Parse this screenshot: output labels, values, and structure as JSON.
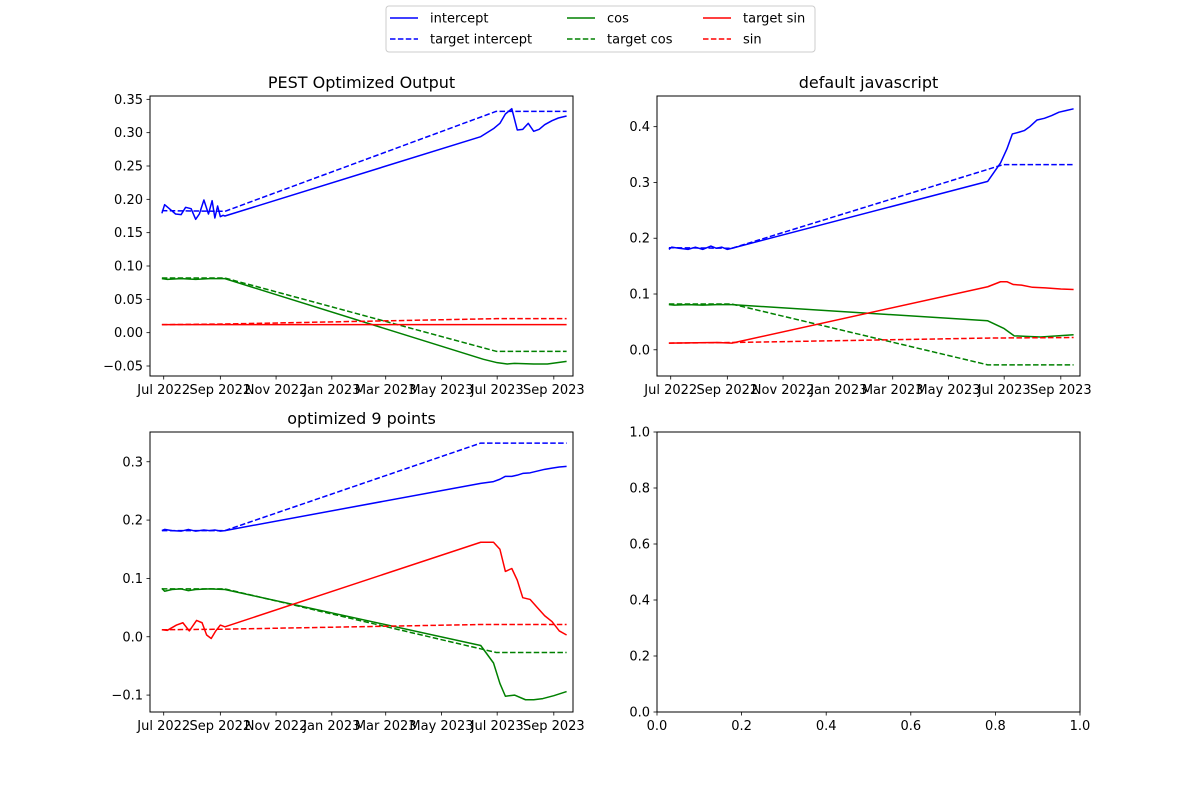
{
  "colors": {
    "blue": "#0000ff",
    "green": "#008000",
    "red": "#ff0000",
    "axis": "#000000"
  },
  "legend": {
    "placement": "top-center",
    "entries": [
      {
        "label": "intercept",
        "color": "#0000ff",
        "style": "solid"
      },
      {
        "label": "target intercept",
        "color": "#0000ff",
        "style": "dashed"
      },
      {
        "label": "cos",
        "color": "#008000",
        "style": "solid"
      },
      {
        "label": "target cos",
        "color": "#008000",
        "style": "dashed"
      },
      {
        "label": "target sin",
        "color": "#ff0000",
        "style": "solid"
      },
      {
        "label": "sin",
        "color": "#ff0000",
        "style": "dashed"
      }
    ]
  },
  "chart_data": [
    {
      "type": "line",
      "title": "PEST Optimized Output",
      "xlabel": "",
      "ylabel": "",
      "x_is_date": true,
      "xlim": [
        "2022-06-16",
        "2023-09-22"
      ],
      "ylim": [
        -0.065,
        0.355
      ],
      "xticks": [
        "2022-07-01",
        "2022-09-01",
        "2022-11-01",
        "2023-01-01",
        "2023-03-01",
        "2023-05-01",
        "2023-07-01",
        "2023-09-01"
      ],
      "xticklabels": [
        "Jul 2022",
        "Sep 2022",
        "Nov 2022",
        "Jan 2023",
        "Mar 2023",
        "May 2023",
        "Jul 2023",
        "Sep 2023"
      ],
      "yticks": [
        -0.05,
        0,
        0.05,
        0.1,
        0.15,
        0.2,
        0.25,
        0.3,
        0.35
      ],
      "yticklabels": [
        "−0.05",
        "0.00",
        "0.05",
        "0.10",
        "0.15",
        "0.20",
        "0.25",
        "0.30",
        "0.35"
      ],
      "series": [
        {
          "name": "intercept",
          "color": "#0000ff",
          "style": "solid",
          "x": [
            "2022-06-29",
            "2022-07-02",
            "2022-07-08",
            "2022-07-14",
            "2022-07-20",
            "2022-07-25",
            "2022-07-31",
            "2022-08-05",
            "2022-08-09",
            "2022-08-14",
            "2022-08-19",
            "2022-08-23",
            "2022-08-26",
            "2022-08-29",
            "2022-09-01",
            "2022-09-04",
            "2022-09-06",
            "2023-06-13",
            "2023-06-27",
            "2023-07-04",
            "2023-07-10",
            "2023-07-17",
            "2023-07-23",
            "2023-07-29",
            "2023-08-04",
            "2023-08-10",
            "2023-08-16",
            "2023-08-22",
            "2023-08-30",
            "2023-09-06",
            "2023-09-15"
          ],
          "y": [
            0.179,
            0.192,
            0.185,
            0.178,
            0.177,
            0.188,
            0.186,
            0.17,
            0.178,
            0.199,
            0.178,
            0.198,
            0.172,
            0.19,
            0.174,
            0.176,
            0.175,
            0.294,
            0.306,
            0.314,
            0.328,
            0.336,
            0.304,
            0.305,
            0.314,
            0.302,
            0.305,
            0.312,
            0.318,
            0.322,
            0.325
          ]
        },
        {
          "name": "target intercept",
          "color": "#0000ff",
          "style": "dashed",
          "x": [
            "2022-06-29",
            "2022-09-06",
            "2023-06-30",
            "2023-09-15"
          ],
          "y": [
            0.183,
            0.182,
            0.332,
            0.332
          ]
        },
        {
          "name": "cos",
          "color": "#008000",
          "style": "solid",
          "x": [
            "2022-06-29",
            "2022-07-05",
            "2022-07-20",
            "2022-08-05",
            "2022-08-20",
            "2022-09-06",
            "2023-06-16",
            "2023-07-01",
            "2023-07-12",
            "2023-07-20",
            "2023-08-10",
            "2023-08-25",
            "2023-09-05",
            "2023-09-15"
          ],
          "y": [
            0.081,
            0.08,
            0.081,
            0.08,
            0.081,
            0.081,
            -0.04,
            -0.045,
            -0.047,
            -0.046,
            -0.047,
            -0.047,
            -0.045,
            -0.043
          ]
        },
        {
          "name": "target cos",
          "color": "#008000",
          "style": "dashed",
          "x": [
            "2022-06-29",
            "2022-09-06",
            "2023-06-30",
            "2023-09-15"
          ],
          "y": [
            0.082,
            0.082,
            -0.028,
            -0.028
          ]
        },
        {
          "name": "target sin",
          "color": "#ff0000",
          "style": "solid",
          "x": [
            "2022-06-29",
            "2023-09-15"
          ],
          "y": [
            0.012,
            0.012
          ]
        },
        {
          "name": "sin",
          "color": "#ff0000",
          "style": "dashed",
          "x": [
            "2022-06-29",
            "2022-09-06",
            "2023-06-30",
            "2023-09-15"
          ],
          "y": [
            0.012,
            0.013,
            0.021,
            0.021
          ]
        }
      ]
    },
    {
      "type": "line",
      "title": "default javascript",
      "xlabel": "",
      "ylabel": "",
      "x_is_date": true,
      "xlim": [
        "2022-06-16",
        "2023-09-22"
      ],
      "ylim": [
        -0.047,
        0.455
      ],
      "xticks": [
        "2022-07-01",
        "2022-09-01",
        "2022-11-01",
        "2023-01-01",
        "2023-03-01",
        "2023-05-01",
        "2023-07-01",
        "2023-09-01"
      ],
      "xticklabels": [
        "Jul 2022",
        "Sep 2022",
        "Nov 2022",
        "Jan 2023",
        "Mar 2023",
        "May 2023",
        "Jul 2023",
        "Sep 2023"
      ],
      "yticks": [
        0,
        0.1,
        0.2,
        0.3,
        0.4
      ],
      "yticklabels": [
        "0.0",
        "0.1",
        "0.2",
        "0.3",
        "0.4"
      ],
      "series": [
        {
          "name": "intercept",
          "color": "#0000ff",
          "style": "solid",
          "x": [
            "2022-06-29",
            "2022-07-02",
            "2022-07-10",
            "2022-07-20",
            "2022-07-28",
            "2022-08-05",
            "2022-08-14",
            "2022-08-20",
            "2022-08-26",
            "2022-09-01",
            "2022-09-06",
            "2023-06-13",
            "2023-06-27",
            "2023-07-04",
            "2023-07-10",
            "2023-07-17",
            "2023-07-23",
            "2023-07-29",
            "2023-08-06",
            "2023-08-14",
            "2023-08-22",
            "2023-08-30",
            "2023-09-07",
            "2023-09-15"
          ],
          "y": [
            0.18,
            0.184,
            0.182,
            0.18,
            0.184,
            0.18,
            0.186,
            0.182,
            0.184,
            0.18,
            0.182,
            0.302,
            0.335,
            0.36,
            0.387,
            0.39,
            0.393,
            0.4,
            0.412,
            0.415,
            0.42,
            0.426,
            0.429,
            0.432
          ]
        },
        {
          "name": "target intercept",
          "color": "#0000ff",
          "style": "dashed",
          "x": [
            "2022-06-29",
            "2022-09-06",
            "2023-06-30",
            "2023-09-15"
          ],
          "y": [
            0.183,
            0.182,
            0.332,
            0.332
          ]
        },
        {
          "name": "cos",
          "color": "#008000",
          "style": "solid",
          "x": [
            "2022-06-29",
            "2022-07-05",
            "2022-07-20",
            "2022-08-05",
            "2022-08-20",
            "2022-09-06",
            "2023-06-13",
            "2023-07-01",
            "2023-07-12",
            "2023-07-25",
            "2023-08-10",
            "2023-09-15"
          ],
          "y": [
            0.081,
            0.08,
            0.081,
            0.08,
            0.081,
            0.081,
            0.052,
            0.038,
            0.025,
            0.024,
            0.023,
            0.027
          ]
        },
        {
          "name": "target cos",
          "color": "#008000",
          "style": "dashed",
          "x": [
            "2022-06-29",
            "2022-09-06",
            "2023-06-13",
            "2023-09-15"
          ],
          "y": [
            0.082,
            0.082,
            -0.027,
            -0.027
          ]
        },
        {
          "name": "target sin",
          "color": "#ff0000",
          "style": "solid",
          "x": [
            "2022-06-29",
            "2022-08-20",
            "2022-09-06",
            "2023-06-13",
            "2023-06-27",
            "2023-07-04",
            "2023-07-11",
            "2023-07-20",
            "2023-08-01",
            "2023-08-15",
            "2023-09-01",
            "2023-09-15"
          ],
          "y": [
            0.012,
            0.013,
            0.012,
            0.113,
            0.122,
            0.122,
            0.117,
            0.116,
            0.112,
            0.111,
            0.109,
            0.108
          ]
        },
        {
          "name": "sin",
          "color": "#ff0000",
          "style": "dashed",
          "x": [
            "2022-06-29",
            "2022-09-06",
            "2023-06-13",
            "2023-09-15"
          ],
          "y": [
            0.012,
            0.013,
            0.021,
            0.022
          ]
        }
      ]
    },
    {
      "type": "line",
      "title": "optimized 9 points",
      "xlabel": "",
      "ylabel": "",
      "x_is_date": true,
      "xlim": [
        "2022-06-16",
        "2023-09-22"
      ],
      "ylim": [
        -0.129,
        0.351
      ],
      "xticks": [
        "2022-07-01",
        "2022-09-01",
        "2022-11-01",
        "2023-01-01",
        "2023-03-01",
        "2023-05-01",
        "2023-07-01",
        "2023-09-01"
      ],
      "xticklabels": [
        "Jul 2022",
        "Sep 2022",
        "Nov 2022",
        "Jan 2023",
        "Mar 2023",
        "May 2023",
        "Jul 2023",
        "Sep 2023"
      ],
      "yticks": [
        -0.1,
        0,
        0.1,
        0.2,
        0.3
      ],
      "yticklabels": [
        "−0.1",
        "0.0",
        "0.1",
        "0.2",
        "0.3"
      ],
      "series": [
        {
          "name": "intercept",
          "color": "#0000ff",
          "style": "solid",
          "x": [
            "2022-06-29",
            "2022-07-02",
            "2022-07-10",
            "2022-07-20",
            "2022-07-28",
            "2022-08-05",
            "2022-08-14",
            "2022-08-20",
            "2022-08-26",
            "2022-09-01",
            "2022-09-06",
            "2023-06-13",
            "2023-06-27",
            "2023-07-04",
            "2023-07-10",
            "2023-07-17",
            "2023-07-23",
            "2023-07-29",
            "2023-08-06",
            "2023-08-14",
            "2023-08-22",
            "2023-08-30",
            "2023-09-07",
            "2023-09-15"
          ],
          "y": [
            0.182,
            0.184,
            0.182,
            0.181,
            0.184,
            0.181,
            0.183,
            0.182,
            0.183,
            0.181,
            0.182,
            0.263,
            0.266,
            0.27,
            0.275,
            0.275,
            0.277,
            0.28,
            0.281,
            0.284,
            0.287,
            0.289,
            0.291,
            0.292
          ]
        },
        {
          "name": "target intercept",
          "color": "#0000ff",
          "style": "dashed",
          "x": [
            "2022-06-29",
            "2022-09-06",
            "2023-06-13",
            "2023-09-15"
          ],
          "y": [
            0.182,
            0.182,
            0.332,
            0.332
          ]
        },
        {
          "name": "cos",
          "color": "#008000",
          "style": "solid",
          "x": [
            "2022-06-29",
            "2022-07-02",
            "2022-07-10",
            "2022-07-20",
            "2022-07-28",
            "2022-08-05",
            "2022-08-20",
            "2022-09-06",
            "2023-06-13",
            "2023-06-27",
            "2023-07-04",
            "2023-07-10",
            "2023-07-20",
            "2023-08-01",
            "2023-08-10",
            "2023-08-20",
            "2023-09-01",
            "2023-09-15"
          ],
          "y": [
            0.083,
            0.078,
            0.081,
            0.082,
            0.079,
            0.081,
            0.082,
            0.081,
            -0.015,
            -0.045,
            -0.08,
            -0.102,
            -0.1,
            -0.108,
            -0.108,
            -0.106,
            -0.101,
            -0.094
          ]
        },
        {
          "name": "target cos",
          "color": "#008000",
          "style": "dashed",
          "x": [
            "2022-06-29",
            "2022-09-06",
            "2023-06-30",
            "2023-09-15"
          ],
          "y": [
            0.082,
            0.082,
            -0.027,
            -0.027
          ]
        },
        {
          "name": "target sin",
          "color": "#ff0000",
          "style": "solid",
          "x": [
            "2022-06-29",
            "2022-07-05",
            "2022-07-15",
            "2022-07-22",
            "2022-07-29",
            "2022-08-06",
            "2022-08-12",
            "2022-08-17",
            "2022-08-22",
            "2022-08-27",
            "2022-09-01",
            "2022-09-06",
            "2023-06-13",
            "2023-06-27",
            "2023-07-04",
            "2023-07-10",
            "2023-07-17",
            "2023-07-23",
            "2023-07-29",
            "2023-08-06",
            "2023-08-14",
            "2023-08-22",
            "2023-08-30",
            "2023-09-07",
            "2023-09-15"
          ],
          "y": [
            0.012,
            0.011,
            0.02,
            0.024,
            0.01,
            0.028,
            0.024,
            0.003,
            -0.003,
            0.01,
            0.02,
            0.017,
            0.162,
            0.162,
            0.15,
            0.112,
            0.117,
            0.097,
            0.067,
            0.064,
            0.05,
            0.036,
            0.026,
            0.01,
            0.003
          ]
        },
        {
          "name": "sin",
          "color": "#ff0000",
          "style": "dashed",
          "x": [
            "2022-06-29",
            "2022-09-06",
            "2023-06-13",
            "2023-09-15"
          ],
          "y": [
            0.012,
            0.013,
            0.021,
            0.021
          ]
        }
      ]
    },
    {
      "type": "line",
      "title": "",
      "xlabel": "",
      "ylabel": "",
      "x_is_date": false,
      "xlim": [
        0,
        1
      ],
      "ylim": [
        0,
        1
      ],
      "xticks": [
        0,
        0.2,
        0.4,
        0.6,
        0.8,
        1
      ],
      "xticklabels": [
        "0.0",
        "0.2",
        "0.4",
        "0.6",
        "0.8",
        "1.0"
      ],
      "yticks": [
        0,
        0.2,
        0.4,
        0.6,
        0.8,
        1
      ],
      "yticklabels": [
        "0.0",
        "0.2",
        "0.4",
        "0.6",
        "0.8",
        "1.0"
      ],
      "series": []
    }
  ]
}
